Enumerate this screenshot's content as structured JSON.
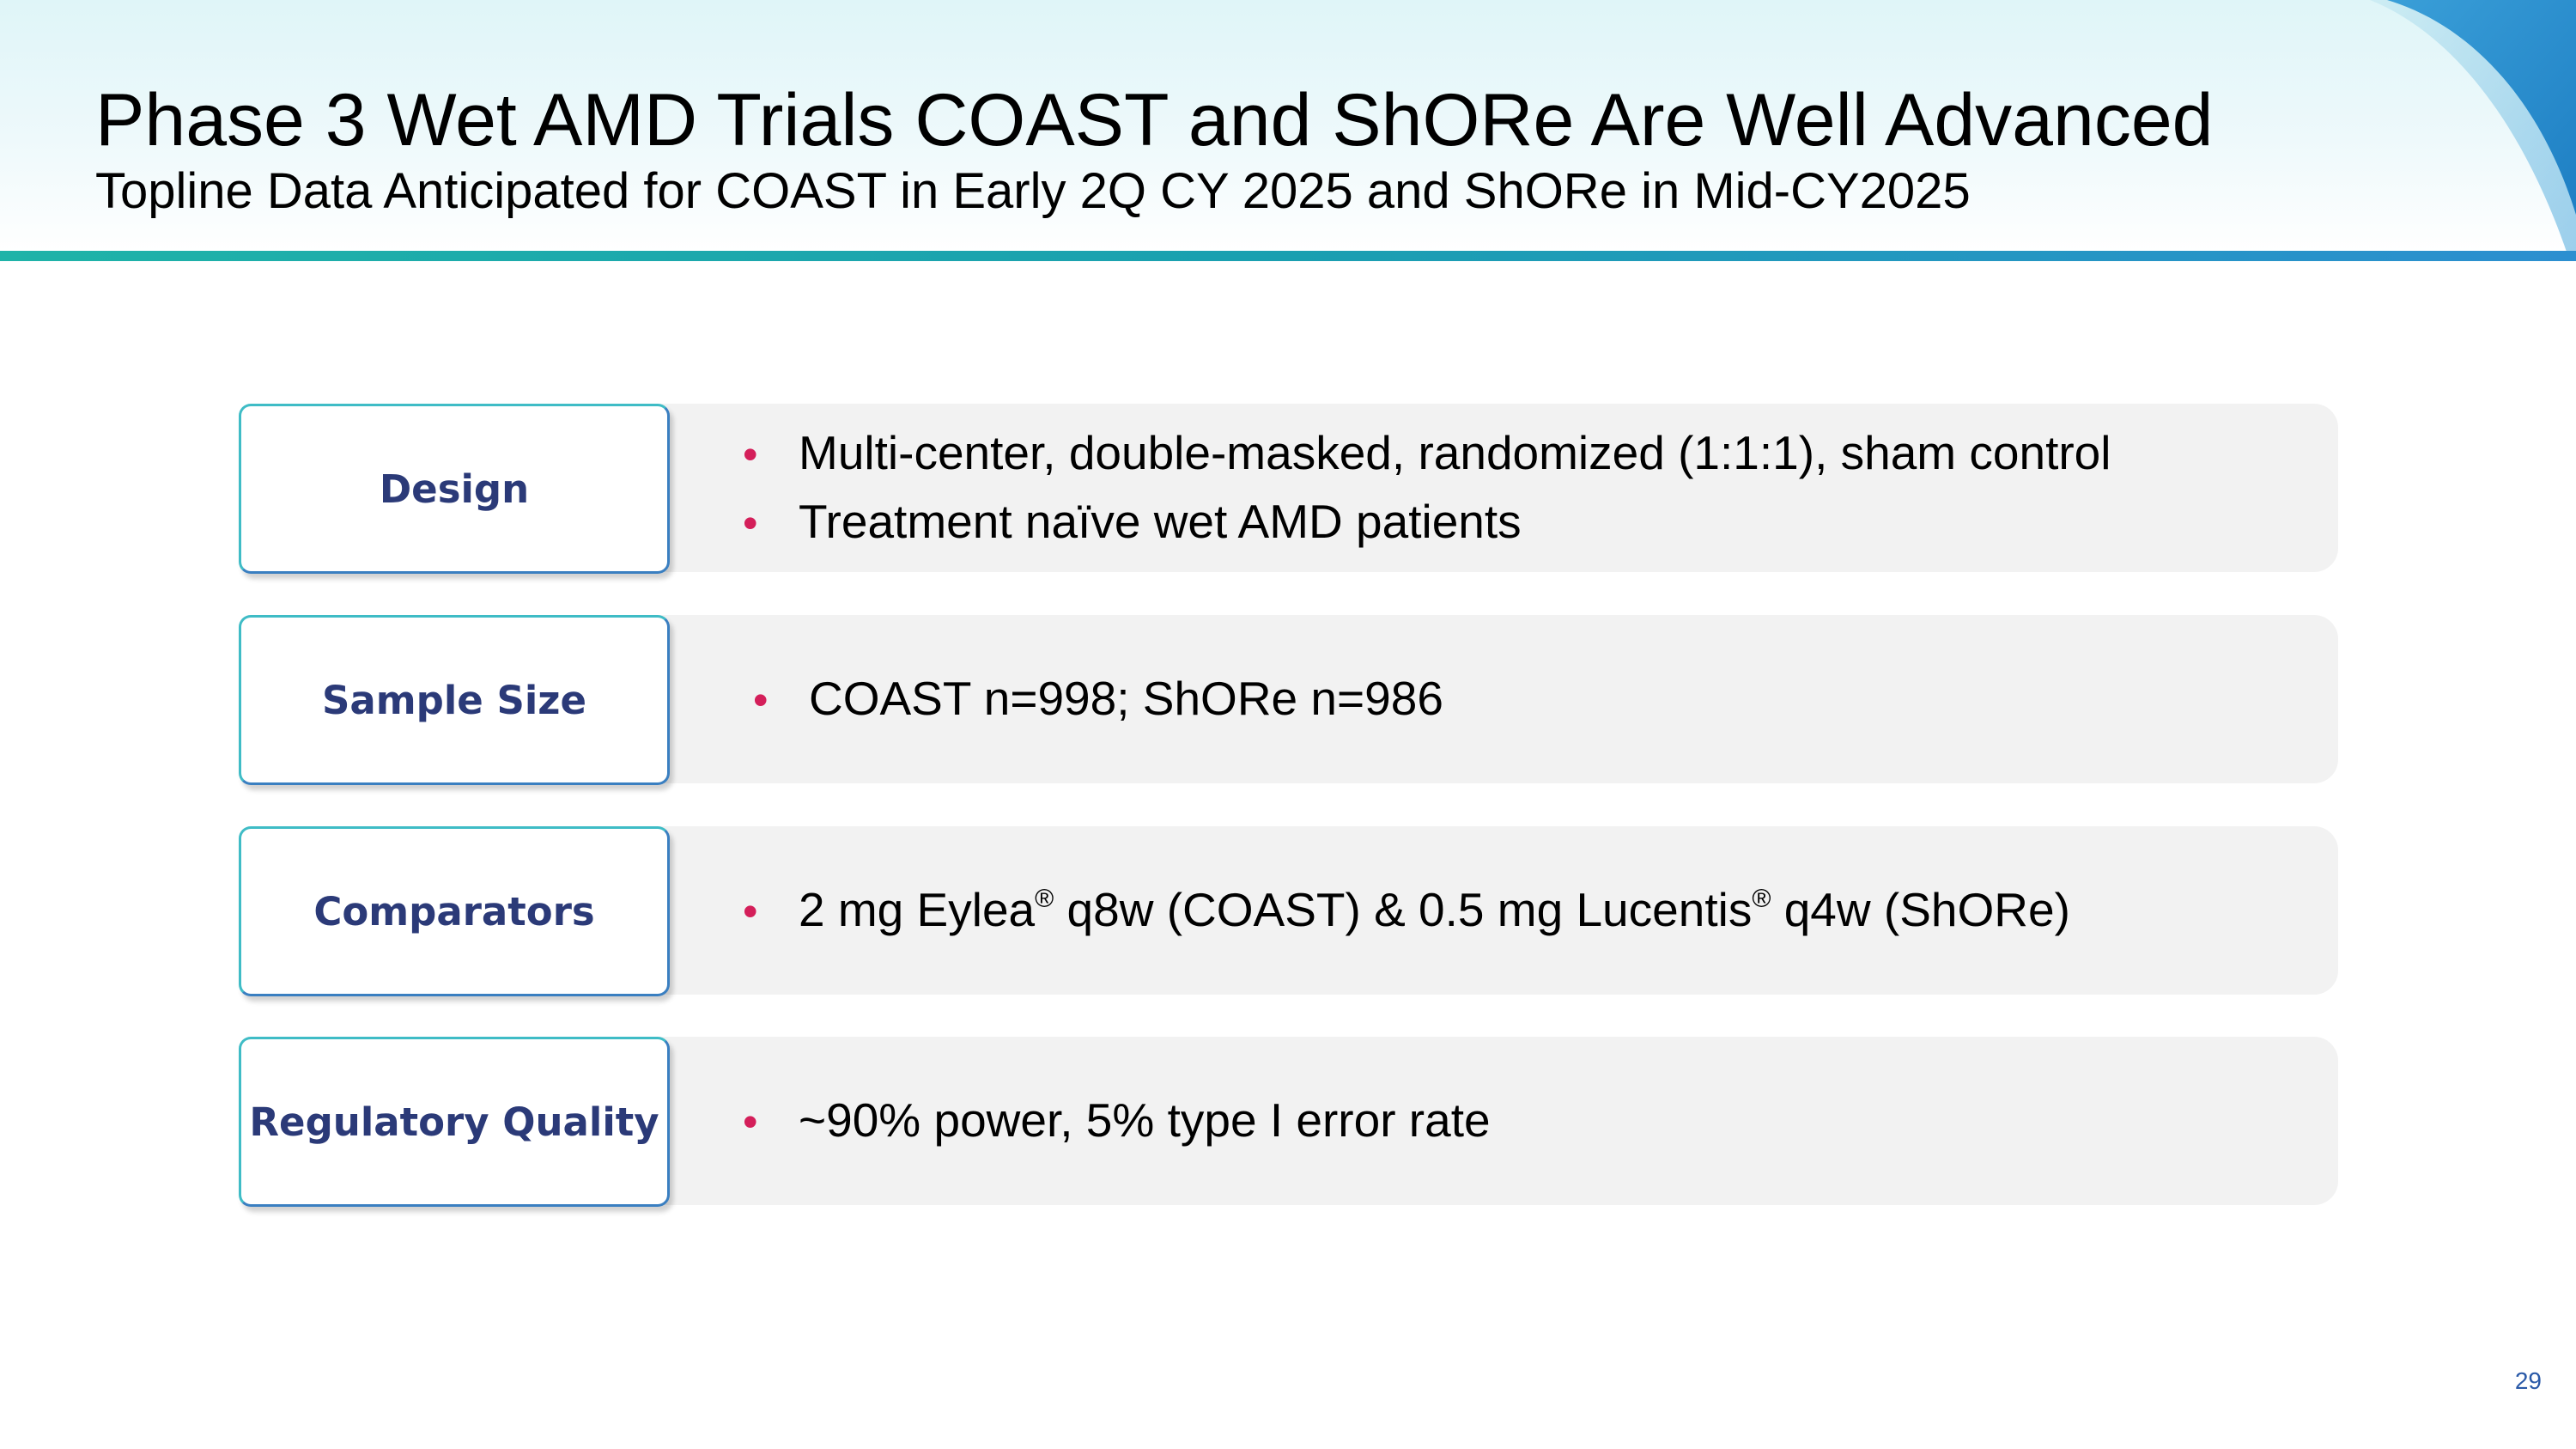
{
  "header": {
    "title": "Phase 3 Wet AMD Trials COAST and ShORe Are Well Advanced",
    "subtitle": "Topline Data Anticipated for COAST in Early 2Q CY 2025 and ShORe in Mid-CY2025"
  },
  "rows": [
    {
      "label": "Design",
      "bullets": [
        "Multi-center, double-masked, randomized (1:1:1), sham control",
        "Treatment naïve wet AMD patients"
      ]
    },
    {
      "label": "Sample Size",
      "bullets": [
        "COAST n=998; ShORe n=986"
      ]
    },
    {
      "label": "Comparators",
      "bullet_parts": {
        "part1": "2 mg Eylea",
        "reg1": "®",
        "part2": " q8w (COAST) & 0.5 mg Lucentis",
        "reg2": "®",
        "part3": " q4w (ShORe)"
      }
    },
    {
      "label": "Regulatory Quality",
      "bullets": [
        "~90% power, 5% type I error rate"
      ]
    }
  ],
  "bullet_symbol": "•",
  "page_number": "29",
  "colors": {
    "label_text": "#2b3a78",
    "bullet_dot": "#d41f5a",
    "row_background": "#f2f2f2",
    "header_line": "#1fb3a8"
  }
}
